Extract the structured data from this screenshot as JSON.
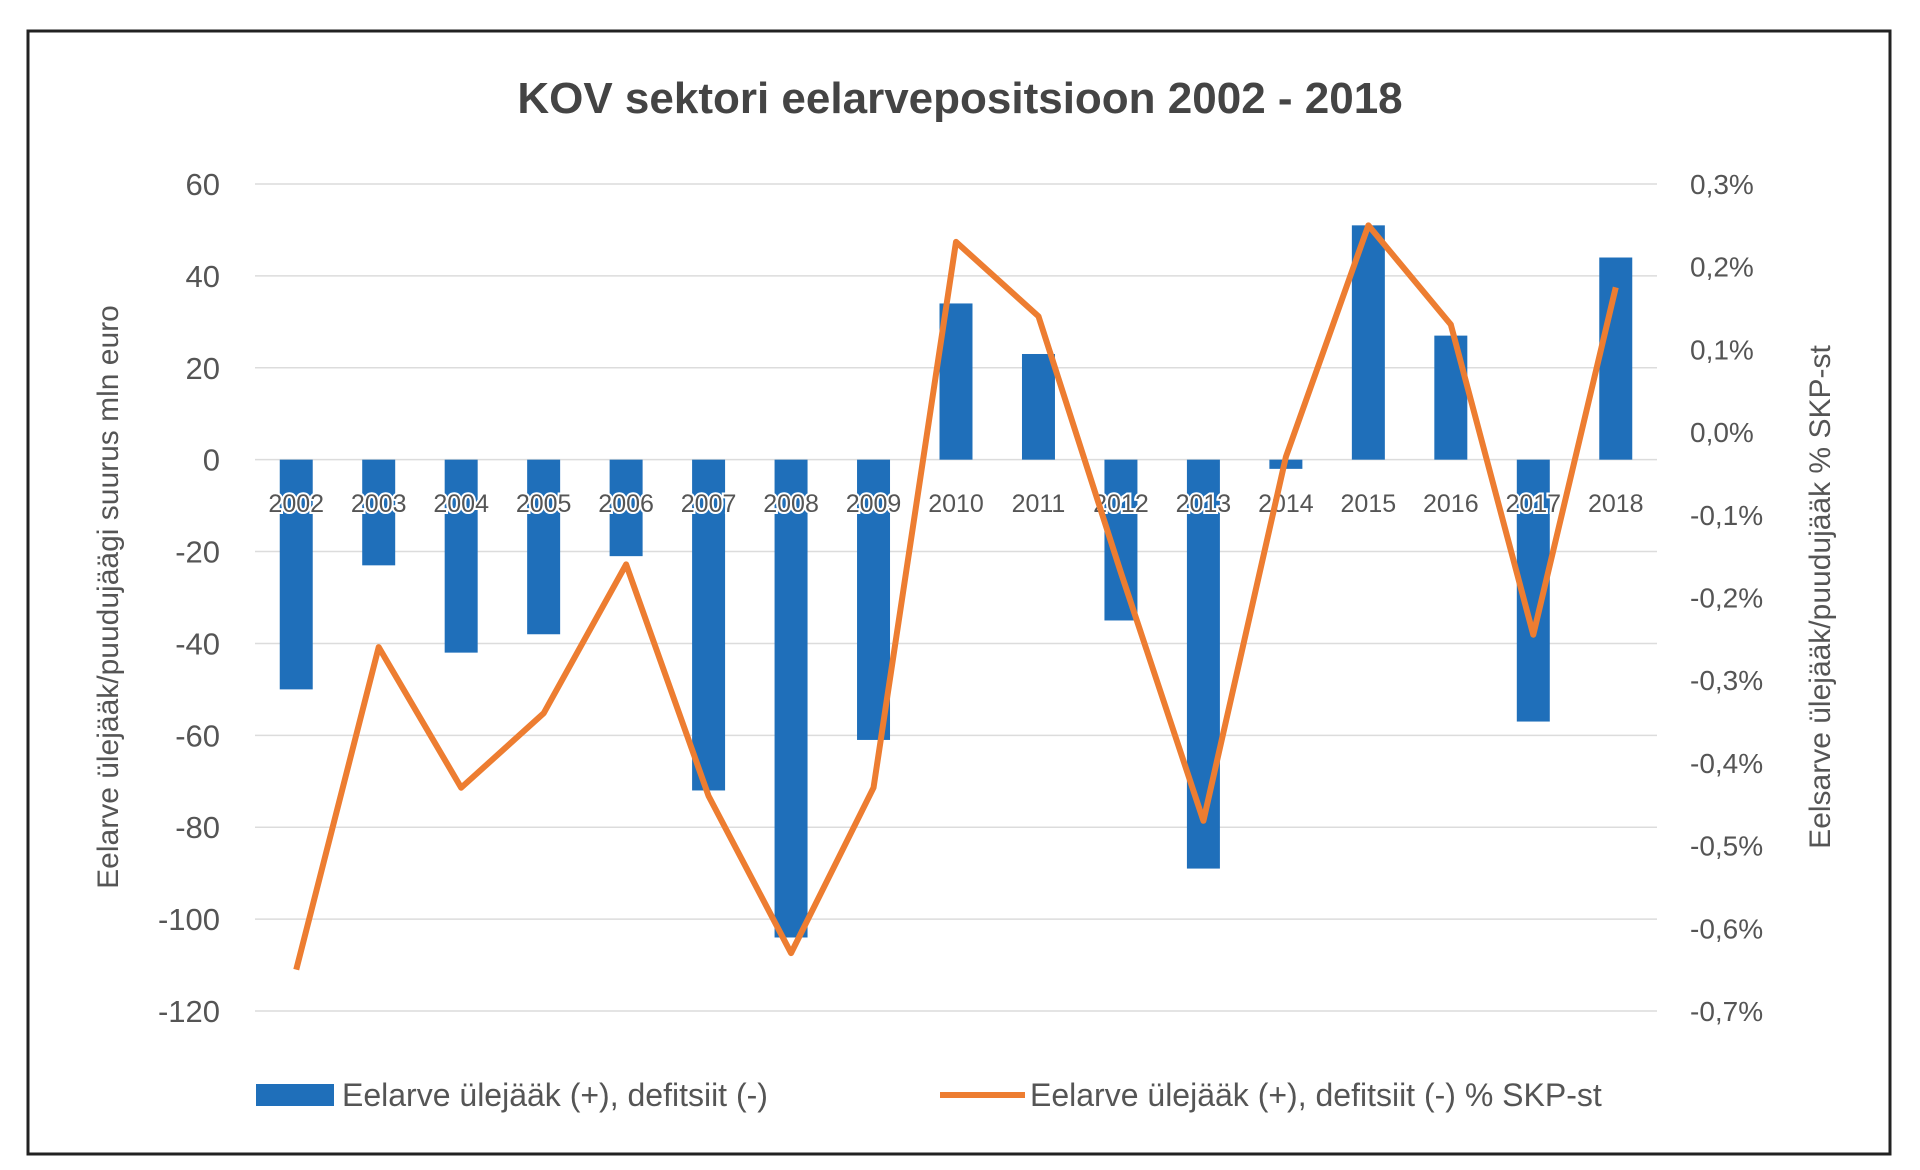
{
  "chart_data": {
    "type": "bar+line",
    "title": "KOV sektori eelarvepositsioon 2002 - 2018",
    "categories": [
      "2002",
      "2003",
      "2004",
      "2005",
      "2006",
      "2007",
      "2008",
      "2009",
      "2010",
      "2011",
      "2012",
      "2013",
      "2014",
      "2015",
      "2016",
      "2017",
      "2018"
    ],
    "series": [
      {
        "name": "Eelarve ülejääk (+), defitsiit (-)",
        "type": "bar",
        "axis": "left",
        "color": "#1f6fba",
        "values": [
          -50,
          -23,
          -42,
          -38,
          -21,
          -72,
          -104,
          -61,
          34,
          23,
          -35,
          -89,
          -2,
          51,
          27,
          -57,
          44
        ]
      },
      {
        "name": "Eelarve ülejääk (+), defitsiit (-) % SKP-st",
        "type": "line",
        "axis": "right",
        "color": "#ed7d31",
        "values": [
          -0.65,
          -0.26,
          -0.43,
          -0.34,
          -0.16,
          -0.44,
          -0.63,
          -0.43,
          0.23,
          0.14,
          -0.17,
          -0.47,
          -0.03,
          0.25,
          0.13,
          -0.245,
          0.175
        ]
      }
    ],
    "ylabel": "Eelarve ülejääk/puudujäägi suurus mln euro",
    "y2label": "Eelsarve ülejääk/puudujääk % SKP-st",
    "ylim": [
      -120,
      60
    ],
    "yticks": [
      60,
      40,
      20,
      0,
      -20,
      -40,
      -60,
      -80,
      -100,
      -120
    ],
    "y2lim": [
      -0.7,
      0.3
    ],
    "y2ticks": [
      "0,3%",
      "0,2%",
      "0,1%",
      "0,0%",
      "-0,1%",
      "-0,2%",
      "-0,3%",
      "-0,4%",
      "-0,5%",
      "-0,6%",
      "-0,7%"
    ],
    "grid": true,
    "legend": "bottom"
  }
}
